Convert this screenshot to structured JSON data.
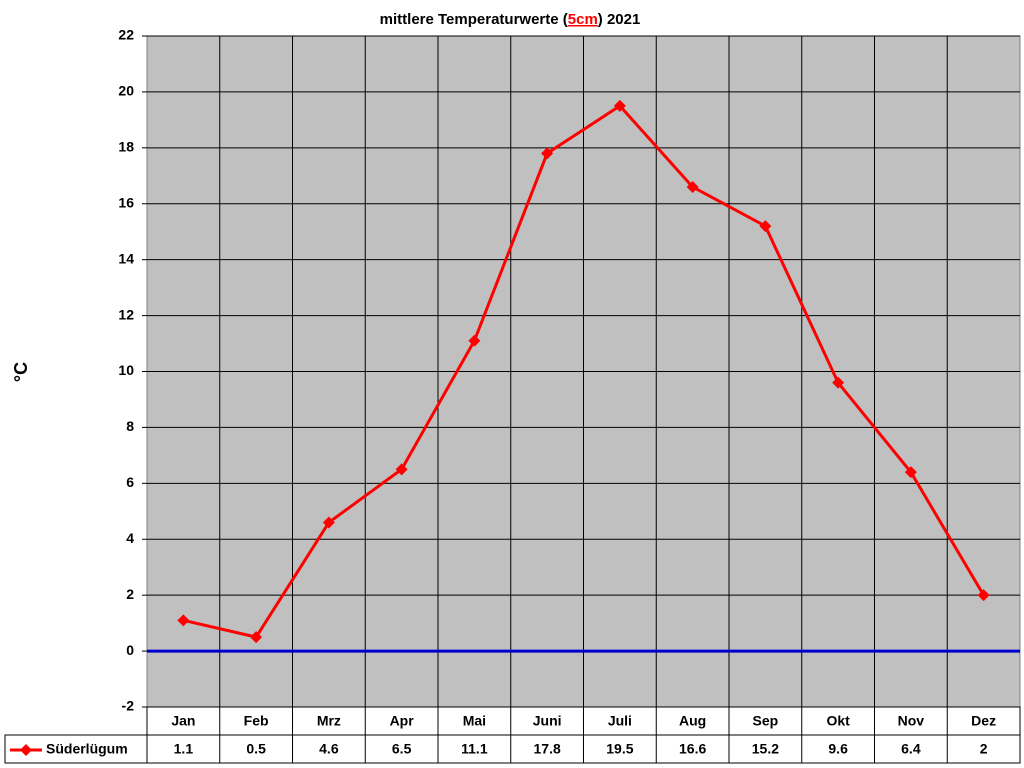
{
  "chart_data": {
    "type": "line",
    "title_parts": [
      "mittlere Temperaturwerte (",
      "5cm",
      ") 2021"
    ],
    "y_label": "°C",
    "categories": [
      "Jan",
      "Feb",
      "Mrz",
      "Apr",
      "Mai",
      "Juni",
      "Juli",
      "Aug",
      "Sep",
      "Okt",
      "Nov",
      "Dez"
    ],
    "series": [
      {
        "name": "Süderlügum",
        "color": "#ff0000",
        "values": [
          1.1,
          0.5,
          4.6,
          6.5,
          11.1,
          17.8,
          19.5,
          16.6,
          15.2,
          9.6,
          6.4,
          2
        ]
      }
    ],
    "ylim": [
      -2,
      22
    ],
    "yticks": [
      -2,
      0,
      2,
      4,
      6,
      8,
      10,
      12,
      14,
      16,
      18,
      20,
      22
    ],
    "grid": true,
    "plot_background": "#c0c0c0",
    "zero_line_color": "#0000cc"
  }
}
